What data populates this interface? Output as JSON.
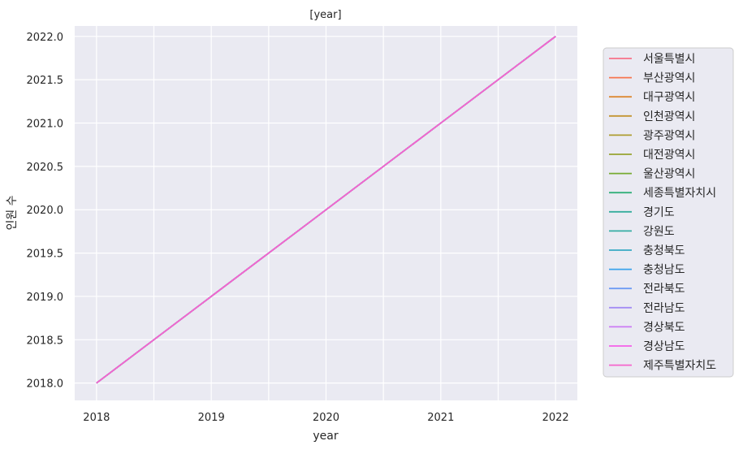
{
  "chart_data": {
    "type": "line",
    "title": "[year]",
    "xlabel": "year",
    "ylabel": "인원 수",
    "x": [
      2018,
      2019,
      2020,
      2021,
      2022
    ],
    "xlim": [
      2017.81,
      2022.19
    ],
    "ylim": [
      2017.8,
      2022.12
    ],
    "x_ticks": [
      "2018",
      "2019",
      "2020",
      "2021",
      "2022"
    ],
    "y_ticks": [
      "2018.0",
      "2018.5",
      "2019.0",
      "2019.5",
      "2020.0",
      "2020.5",
      "2021.0",
      "2021.5",
      "2022.0"
    ],
    "grid": true,
    "background": "#eaeaf2",
    "legend_position": "right",
    "series": [
      {
        "name": "서울특별시",
        "color": "#f77189",
        "values": [
          2018,
          2019,
          2020,
          2021,
          2022
        ]
      },
      {
        "name": "부산광역시",
        "color": "#f7754f",
        "values": [
          2018,
          2019,
          2020,
          2021,
          2022
        ]
      },
      {
        "name": "대구광역시",
        "color": "#dc8932",
        "values": [
          2018,
          2019,
          2020,
          2021,
          2022
        ]
      },
      {
        "name": "인천광역시",
        "color": "#c39532",
        "values": [
          2018,
          2019,
          2020,
          2021,
          2022
        ]
      },
      {
        "name": "광주광역시",
        "color": "#ae9d31",
        "values": [
          2018,
          2019,
          2020,
          2021,
          2022
        ]
      },
      {
        "name": "대전광역시",
        "color": "#97a431",
        "values": [
          2018,
          2019,
          2020,
          2021,
          2022
        ]
      },
      {
        "name": "울산광역시",
        "color": "#77ab31",
        "values": [
          2018,
          2019,
          2020,
          2021,
          2022
        ]
      },
      {
        "name": "세종특별자치시",
        "color": "#33b07a",
        "values": [
          2018,
          2019,
          2020,
          2021,
          2022
        ]
      },
      {
        "name": "경기도",
        "color": "#35ad9c",
        "values": [
          2018,
          2019,
          2020,
          2021,
          2022
        ]
      },
      {
        "name": "강원도",
        "color": "#36ada4",
        "values": [
          2018,
          2019,
          2020,
          2021,
          2022
        ]
      },
      {
        "name": "충청북도",
        "color": "#38a9c5",
        "values": [
          2018,
          2019,
          2020,
          2021,
          2022
        ]
      },
      {
        "name": "충청남도",
        "color": "#3ba3ec",
        "values": [
          2018,
          2019,
          2020,
          2021,
          2022
        ]
      },
      {
        "name": "전라북도",
        "color": "#6e9bf4",
        "values": [
          2018,
          2019,
          2020,
          2021,
          2022
        ]
      },
      {
        "name": "전라남도",
        "color": "#a48cf4",
        "values": [
          2018,
          2019,
          2020,
          2021,
          2022
        ]
      },
      {
        "name": "경상북도",
        "color": "#cc7af4",
        "values": [
          2018,
          2019,
          2020,
          2021,
          2022
        ]
      },
      {
        "name": "경상남도",
        "color": "#f45fe8",
        "values": [
          2018,
          2019,
          2020,
          2021,
          2022
        ]
      },
      {
        "name": "제주특별자치도",
        "color": "#f565cc",
        "values": [
          2018,
          2019,
          2020,
          2021,
          2022
        ]
      }
    ]
  }
}
